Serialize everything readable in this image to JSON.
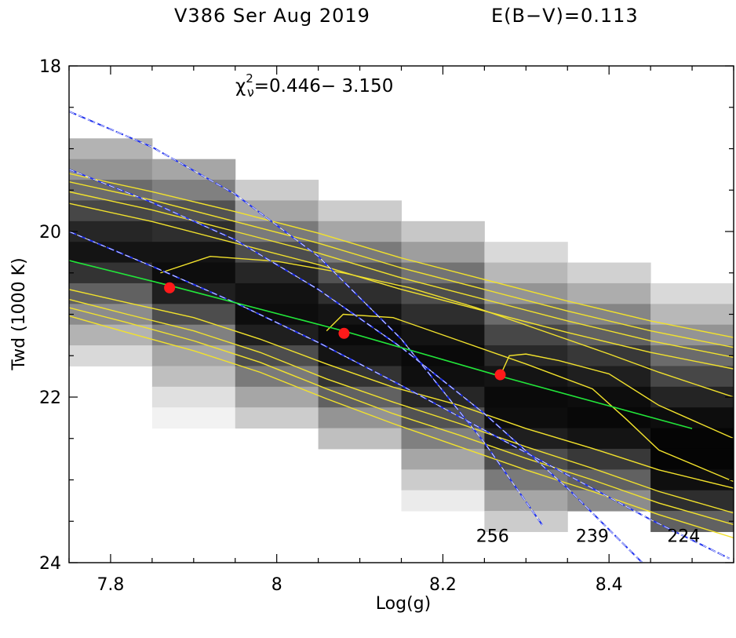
{
  "header": {
    "object_date": "V386 Ser  Aug 2019",
    "reddening": "E(B−V)=0.113"
  },
  "chart_data": {
    "type": "heatmap",
    "xlabel": "Log(g)",
    "ylabel": "Twd (1000 K)",
    "xlim": [
      7.75,
      8.55
    ],
    "ylim": [
      24,
      18
    ],
    "x_ticks": [
      7.8,
      8.0,
      8.2,
      8.4
    ],
    "x_tick_labels": [
      "7.8",
      "8",
      "8.2",
      "8.4"
    ],
    "y_ticks": [
      18,
      20,
      22,
      24
    ],
    "y_tick_labels": [
      "18",
      "20",
      "22",
      "24"
    ],
    "chi_label": {
      "chi": "χ",
      "sup": "2",
      "sub": "ν",
      "range": "=0.446− 3.150"
    },
    "grayscale_grid": {
      "x_edges": [
        7.75,
        7.85,
        7.95,
        8.05,
        8.15,
        8.25,
        8.35,
        8.45,
        8.55
      ],
      "columns": [
        {
          "y0": 18.875,
          "cells": [
            0.3,
            0.42,
            0.58,
            0.72,
            0.85,
            0.92,
            0.8,
            0.62,
            0.45,
            0.3,
            0.15
          ]
        },
        {
          "y0": 19.125,
          "cells": [
            0.35,
            0.5,
            0.68,
            0.82,
            0.92,
            0.95,
            0.88,
            0.7,
            0.5,
            0.35,
            0.25,
            0.12,
            0.05
          ]
        },
        {
          "y0": 19.375,
          "cells": [
            0.2,
            0.35,
            0.52,
            0.7,
            0.85,
            0.93,
            0.95,
            0.88,
            0.7,
            0.52,
            0.35,
            0.2
          ]
        },
        {
          "y0": 19.625,
          "cells": [
            0.2,
            0.35,
            0.52,
            0.68,
            0.82,
            0.92,
            0.96,
            0.92,
            0.8,
            0.62,
            0.42,
            0.25
          ]
        },
        {
          "y0": 19.875,
          "cells": [
            0.22,
            0.38,
            0.55,
            0.7,
            0.82,
            0.92,
            0.96,
            0.94,
            0.85,
            0.68,
            0.5,
            0.35,
            0.2,
            0.08
          ]
        },
        {
          "y0": 20.125,
          "cells": [
            0.15,
            0.28,
            0.42,
            0.58,
            0.72,
            0.84,
            0.92,
            0.96,
            0.95,
            0.88,
            0.7,
            0.52,
            0.35,
            0.2
          ]
        },
        {
          "y0": 20.375,
          "cells": [
            0.18,
            0.32,
            0.48,
            0.62,
            0.78,
            0.88,
            0.95,
            0.97,
            0.92,
            0.78,
            0.62,
            0.45
          ]
        },
        {
          "y0": 20.625,
          "cells": [
            0.15,
            0.28,
            0.42,
            0.58,
            0.72,
            0.86,
            0.95,
            0.98,
            0.98,
            0.94,
            0.82,
            0.62
          ]
        }
      ]
    },
    "chi2_contours": [
      {
        "x": [
          7.75,
          7.85,
          7.95,
          8.05,
          8.15,
          8.25,
          8.35,
          8.45,
          8.55
        ],
        "y": [
          19.3,
          19.52,
          19.76,
          20.02,
          20.32,
          20.58,
          20.84,
          21.08,
          21.28
        ]
      },
      {
        "x": [
          7.75,
          7.85,
          7.95,
          8.05,
          8.15,
          8.25,
          8.35,
          8.45,
          8.55
        ],
        "y": [
          19.4,
          19.62,
          19.88,
          20.14,
          20.44,
          20.7,
          20.96,
          21.2,
          21.4
        ]
      },
      {
        "x": [
          7.75,
          7.85,
          7.95,
          8.05,
          8.15,
          8.25,
          8.35,
          8.45,
          8.55
        ],
        "y": [
          19.52,
          19.74,
          20.0,
          20.26,
          20.56,
          20.82,
          21.08,
          21.32,
          21.52
        ]
      },
      {
        "x": [
          7.75,
          7.85,
          7.95,
          8.05,
          8.15,
          8.25,
          8.35,
          8.45,
          8.55
        ],
        "y": [
          19.66,
          19.88,
          20.14,
          20.4,
          20.7,
          20.96,
          21.22,
          21.46,
          21.66
        ]
      },
      {
        "x": [
          7.86,
          7.92,
          8.0,
          8.08,
          8.16,
          8.24,
          8.32,
          8.4,
          8.46,
          8.55
        ],
        "y": [
          20.5,
          20.3,
          20.36,
          20.5,
          20.68,
          20.92,
          21.2,
          21.48,
          21.7,
          22.0
        ]
      },
      {
        "x": [
          7.75,
          7.82,
          7.9,
          7.98,
          8.06,
          8.14,
          8.22,
          8.3,
          8.38,
          8.46,
          8.55
        ],
        "y": [
          20.7,
          20.86,
          21.04,
          21.3,
          21.6,
          21.88,
          22.1,
          22.38,
          22.62,
          22.88,
          23.1
        ]
      },
      {
        "x": [
          7.75,
          7.82,
          7.9,
          7.98,
          8.06,
          8.14,
          8.22,
          8.3,
          8.38,
          8.46,
          8.55
        ],
        "y": [
          20.82,
          21.0,
          21.2,
          21.46,
          21.78,
          22.06,
          22.32,
          22.6,
          22.86,
          23.14,
          23.4
        ]
      },
      {
        "x": [
          7.75,
          7.82,
          7.9,
          7.98,
          8.06,
          8.14,
          8.22,
          8.3,
          8.38,
          8.46,
          8.55
        ],
        "y": [
          20.92,
          21.1,
          21.32,
          21.58,
          21.9,
          22.2,
          22.46,
          22.74,
          23.0,
          23.28,
          23.54
        ]
      },
      {
        "x": [
          7.75,
          7.82,
          7.9,
          7.98,
          8.06,
          8.14,
          8.22,
          8.3,
          8.38,
          8.46,
          8.55
        ],
        "y": [
          21.02,
          21.22,
          21.44,
          21.7,
          22.02,
          22.32,
          22.6,
          22.88,
          23.14,
          23.42,
          23.7
        ]
      },
      {
        "x": [
          8.06,
          8.08,
          8.14,
          8.22,
          8.3,
          8.38,
          8.42,
          8.46,
          8.55
        ],
        "y": [
          21.2,
          21.0,
          21.04,
          21.32,
          21.6,
          21.9,
          22.26,
          22.64,
          23.02
        ]
      },
      {
        "x": [
          8.27,
          8.28,
          8.3,
          8.34,
          8.4,
          8.46,
          8.55
        ],
        "y": [
          21.72,
          21.5,
          21.48,
          21.56,
          21.72,
          22.1,
          22.5
        ]
      }
    ],
    "best_fit_line": {
      "x": [
        7.75,
        7.87,
        8.08,
        8.27,
        8.5
      ],
      "y": [
        20.35,
        20.65,
        21.2,
        21.75,
        22.38
      ]
    },
    "best_fit_points": {
      "x": [
        7.871,
        8.081,
        8.269
      ],
      "y": [
        20.68,
        21.23,
        21.73
      ]
    },
    "distance_curves": [
      {
        "label": "256",
        "x": [
          7.75,
          7.85,
          7.95,
          8.05,
          8.15,
          8.25,
          8.32
        ],
        "y": [
          18.55,
          18.98,
          19.55,
          20.3,
          21.3,
          22.55,
          23.55
        ],
        "label_x": 8.24,
        "label_y": 23.75
      },
      {
        "label": "239",
        "x": [
          7.75,
          7.85,
          7.95,
          8.05,
          8.15,
          8.25,
          8.35,
          8.44
        ],
        "y": [
          19.25,
          19.65,
          20.1,
          20.7,
          21.4,
          22.2,
          23.1,
          24.0
        ],
        "label_x": 8.36,
        "label_y": 23.75
      },
      {
        "label": "224",
        "x": [
          7.75,
          7.85,
          7.95,
          8.05,
          8.15,
          8.25,
          8.35,
          8.45,
          8.545
        ],
        "y": [
          20.0,
          20.42,
          20.86,
          21.34,
          21.86,
          22.4,
          22.94,
          23.48,
          23.95
        ],
        "label_x": 8.47,
        "label_y": 23.75
      }
    ],
    "colors": {
      "contour": "#f2e22c",
      "fit_line": "#22e63a",
      "fit_point": "#ff1a1a",
      "curve_dash": "#2233ee",
      "curve_core": "#ffffff"
    },
    "grid": false
  }
}
